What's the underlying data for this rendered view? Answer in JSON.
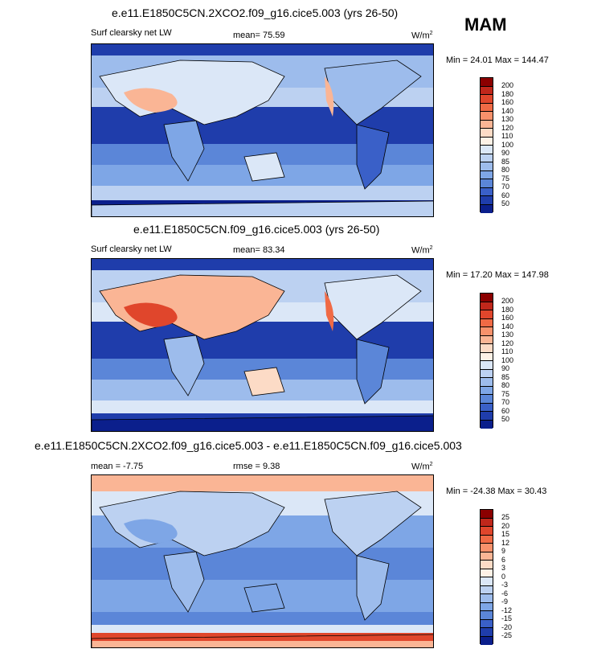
{
  "season": "MAM",
  "panels": [
    {
      "title": "e.e11.E1850C5CN.2XCO2.f09_g16.cice5.003 (yrs 26-50)",
      "left_label": "Surf clearsky net LW",
      "center_label": "mean=  75.59",
      "units": "W/m",
      "minmax": "Min = 24.01 Max = 144.47",
      "colorbar_labels": [
        "200",
        "180",
        "160",
        "140",
        "130",
        "120",
        "110",
        "100",
        "90",
        "85",
        "80",
        "75",
        "70",
        "60",
        "50"
      ],
      "colors": [
        "#8b0000",
        "#c0271b",
        "#e0462c",
        "#f06a45",
        "#f7916b",
        "#fab595",
        "#fcdbc6",
        "#fdf1e6",
        "#dbe7f7",
        "#bcd1f1",
        "#9dbcec",
        "#7ea6e6",
        "#5b86d8",
        "#3a60c8",
        "#1f3dab",
        "#0b1f8c"
      ]
    },
    {
      "title": "e.e11.E1850C5CN.f09_g16.cice5.003 (yrs 26-50)",
      "left_label": "Surf clearsky net LW",
      "center_label": "mean=  83.34",
      "units": "W/m",
      "minmax": "Min = 17.20 Max = 147.98",
      "colorbar_labels": [
        "200",
        "180",
        "160",
        "140",
        "130",
        "120",
        "110",
        "100",
        "90",
        "85",
        "80",
        "75",
        "70",
        "60",
        "50"
      ],
      "colors": [
        "#8b0000",
        "#c0271b",
        "#e0462c",
        "#f06a45",
        "#f7916b",
        "#fab595",
        "#fcdbc6",
        "#fdf1e6",
        "#dbe7f7",
        "#bcd1f1",
        "#9dbcec",
        "#7ea6e6",
        "#5b86d8",
        "#3a60c8",
        "#1f3dab",
        "#0b1f8c"
      ]
    },
    {
      "title": "e.e11.E1850C5CN.2XCO2.f09_g16.cice5.003 - e.e11.E1850C5CN.f09_g16.cice5.003",
      "left_label": "mean =  -7.75",
      "center_label": "rmse =  9.38",
      "units": "W/m",
      "minmax": "Min = -24.38 Max = 30.43",
      "colorbar_labels": [
        "25",
        "20",
        "15",
        "12",
        "9",
        "6",
        "3",
        "0",
        "-3",
        "-6",
        "-9",
        "-12",
        "-15",
        "-20",
        "-25"
      ],
      "colors": [
        "#8b0000",
        "#c0271b",
        "#e0462c",
        "#f06a45",
        "#f7916b",
        "#fab595",
        "#fcdbc6",
        "#fdf1e6",
        "#dbe7f7",
        "#bcd1f1",
        "#9dbcec",
        "#7ea6e6",
        "#5b86d8",
        "#3a60c8",
        "#1f3dab",
        "#0b1f8c"
      ]
    }
  ]
}
